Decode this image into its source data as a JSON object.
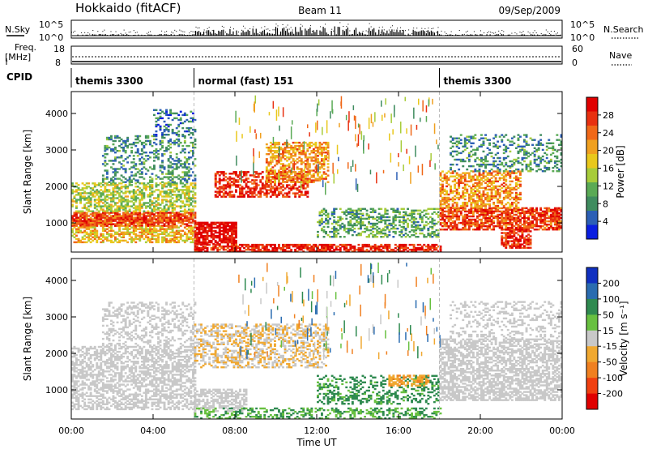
{
  "header": {
    "station": "Hokkaido (fitACF)",
    "beam": "Beam 11",
    "date": "09/Sep/2009"
  },
  "top_panel": {
    "left_label": "N.Sky",
    "right_label": "N.Search",
    "left_ticks": [
      "10^5",
      "10^0"
    ],
    "right_ticks": [
      "10^5",
      "10^0"
    ]
  },
  "freq_panel": {
    "left_label_1": "Freq.",
    "left_label_2": "[MHz]",
    "right_label": "Nave",
    "left_ticks": [
      "18",
      "8"
    ],
    "right_ticks": [
      "60",
      "0"
    ]
  },
  "cpid": {
    "label": "CPID",
    "segments": [
      {
        "name": "themis 3300",
        "start_hour": 0,
        "end_hour": 6
      },
      {
        "name": "normal (fast) 151",
        "start_hour": 6,
        "end_hour": 18
      },
      {
        "name": "themis 3300",
        "start_hour": 18,
        "end_hour": 24
      }
    ]
  },
  "chart_data": [
    {
      "type": "heatmap",
      "title": "",
      "xlabel": "Time UT",
      "ylabel": "Slant Range [km]",
      "xlim": [
        0,
        24
      ],
      "ylim": [
        200,
        4600
      ],
      "x_ticks": [
        "00:00",
        "04:00",
        "08:00",
        "12:00",
        "16:00",
        "20:00",
        "00:00"
      ],
      "y_ticks": [
        "1000",
        "2000",
        "3000",
        "4000"
      ],
      "colorbar": {
        "label": "Power [dB]",
        "ticks": [
          "4",
          "8",
          "12",
          "16",
          "20",
          "24",
          "28"
        ],
        "range": [
          0,
          30
        ],
        "colors": [
          "#0a1ee0",
          "#2c5fb5",
          "#3f8c5f",
          "#5aaa55",
          "#a7cc3a",
          "#e9c81c",
          "#f0a020",
          "#f06818",
          "#e83010",
          "#e00000"
        ]
      },
      "bands": [
        {
          "t0": 0.0,
          "t1": 6.0,
          "r0": 900,
          "r1": 1300,
          "power": 24,
          "fill": 0.85
        },
        {
          "t0": 0.0,
          "t1": 6.0,
          "r0": 450,
          "r1": 900,
          "power": 18,
          "fill": 0.6
        },
        {
          "t0": 0.0,
          "t1": 6.0,
          "r0": 1300,
          "r1": 2100,
          "power": 14,
          "fill": 0.55
        },
        {
          "t0": 1.5,
          "t1": 6.0,
          "r0": 2100,
          "r1": 3400,
          "power": 8,
          "fill": 0.35
        },
        {
          "t0": 4.0,
          "t1": 6.0,
          "r0": 3400,
          "r1": 4100,
          "power": 6,
          "fill": 0.3
        },
        {
          "t0": 6.0,
          "t1": 8.0,
          "r0": 400,
          "r1": 1000,
          "power": 29,
          "fill": 0.8
        },
        {
          "t0": 7.0,
          "t1": 11.5,
          "r0": 1700,
          "r1": 2400,
          "power": 26,
          "fill": 0.6
        },
        {
          "t0": 9.5,
          "t1": 12.5,
          "r0": 2100,
          "r1": 3200,
          "power": 20,
          "fill": 0.55
        },
        {
          "t0": 6.0,
          "t1": 18.0,
          "r0": 200,
          "r1": 400,
          "power": 27,
          "fill": 0.7
        },
        {
          "t0": 12.0,
          "t1": 18.0,
          "r0": 600,
          "r1": 1400,
          "power": 10,
          "fill": 0.45
        },
        {
          "t0": 18.0,
          "t1": 24.0,
          "r0": 800,
          "r1": 1400,
          "power": 25,
          "fill": 0.75
        },
        {
          "t0": 18.0,
          "t1": 22.0,
          "r0": 1400,
          "r1": 2400,
          "power": 20,
          "fill": 0.55
        },
        {
          "t0": 18.5,
          "t1": 24.0,
          "r0": 2400,
          "r1": 3400,
          "power": 8,
          "fill": 0.3
        },
        {
          "t0": 21.0,
          "t1": 22.5,
          "r0": 300,
          "r1": 800,
          "power": 26,
          "fill": 0.7
        }
      ]
    },
    {
      "type": "heatmap",
      "title": "",
      "xlabel": "Time UT",
      "ylabel": "Slant Range [km]",
      "xlim": [
        0,
        24
      ],
      "ylim": [
        200,
        4600
      ],
      "x_ticks": [
        "00:00",
        "04:00",
        "08:00",
        "12:00",
        "16:00",
        "20:00",
        "00:00"
      ],
      "y_ticks": [
        "1000",
        "2000",
        "3000",
        "4000"
      ],
      "colorbar": {
        "label": "Velocity [m s⁻¹]",
        "ticks": [
          "200",
          "100",
          "50",
          "15",
          "-15",
          "-50",
          "-100",
          "-200"
        ],
        "colors": [
          "#1030c0",
          "#2a6cb0",
          "#2f8a50",
          "#68c040",
          "#c8c8c8",
          "#f0a830",
          "#f08020",
          "#f04010",
          "#e00000"
        ]
      },
      "bands": [
        {
          "t0": 0.0,
          "t1": 6.0,
          "r0": 450,
          "r1": 2200,
          "vel": 0,
          "fill": 0.55
        },
        {
          "t0": 1.5,
          "t1": 6.0,
          "r0": 2200,
          "r1": 3400,
          "vel": 0,
          "fill": 0.3
        },
        {
          "t0": 6.0,
          "t1": 12.5,
          "r0": 1600,
          "r1": 2800,
          "vel": -30,
          "fill": 0.45
        },
        {
          "t0": 6.0,
          "t1": 8.5,
          "r0": 400,
          "r1": 1000,
          "vel": 0,
          "fill": 0.6
        },
        {
          "t0": 12.0,
          "t1": 18.0,
          "r0": 600,
          "r1": 1400,
          "vel": 40,
          "fill": 0.35
        },
        {
          "t0": 15.5,
          "t1": 17.5,
          "r0": 1100,
          "r1": 1400,
          "vel": -70,
          "fill": 0.6
        },
        {
          "t0": 6.0,
          "t1": 18.0,
          "r0": 200,
          "r1": 500,
          "vel": 30,
          "fill": 0.4
        },
        {
          "t0": 18.0,
          "t1": 24.0,
          "r0": 700,
          "r1": 2400,
          "vel": 0,
          "fill": 0.6
        },
        {
          "t0": 18.5,
          "t1": 24.0,
          "r0": 2400,
          "r1": 3400,
          "vel": 0,
          "fill": 0.25
        }
      ]
    }
  ]
}
